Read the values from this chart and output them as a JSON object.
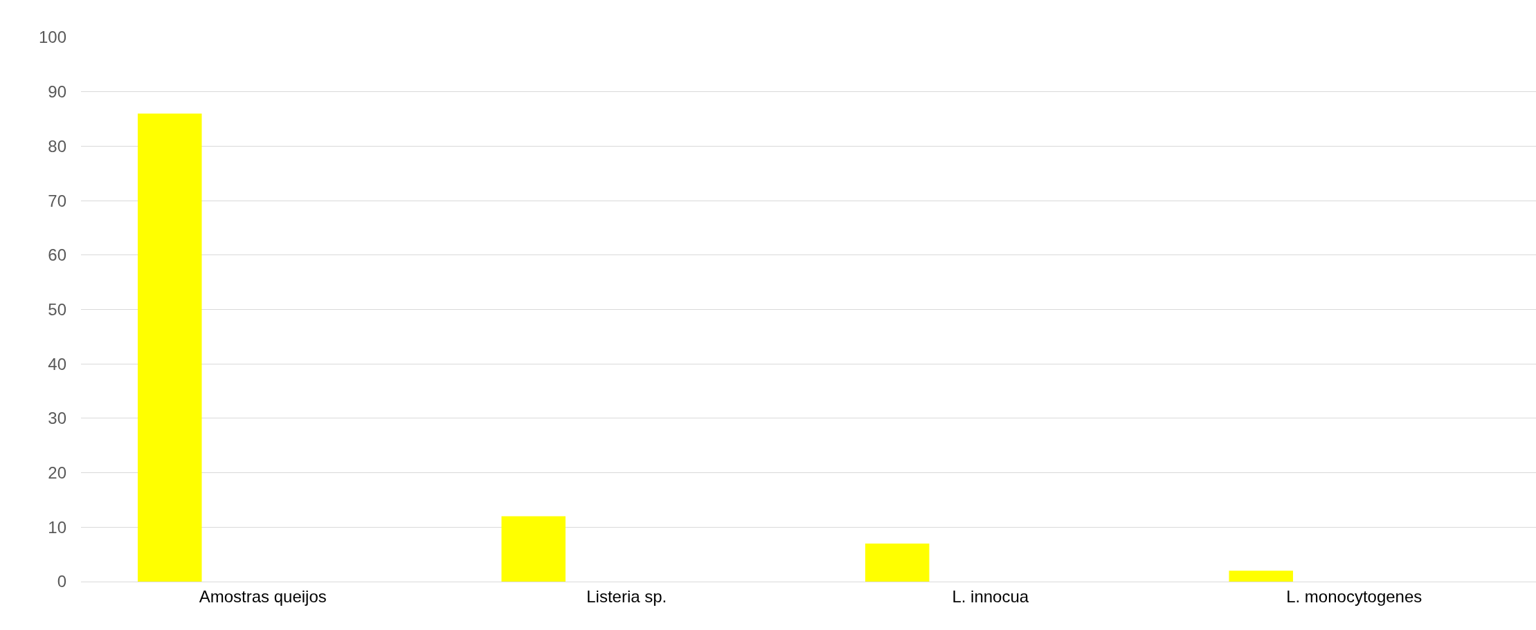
{
  "chart_data": {
    "type": "bar",
    "categories": [
      "Amostras queijos",
      "Listeria sp.",
      "L. innocua",
      "L. monocytogenes"
    ],
    "values": [
      86,
      12,
      7,
      2
    ],
    "color": "#ffff00",
    "ylim": [
      0,
      100
    ],
    "yticks": [
      0,
      10,
      20,
      30,
      40,
      50,
      60,
      70,
      80,
      90,
      100
    ],
    "grid": "y"
  }
}
